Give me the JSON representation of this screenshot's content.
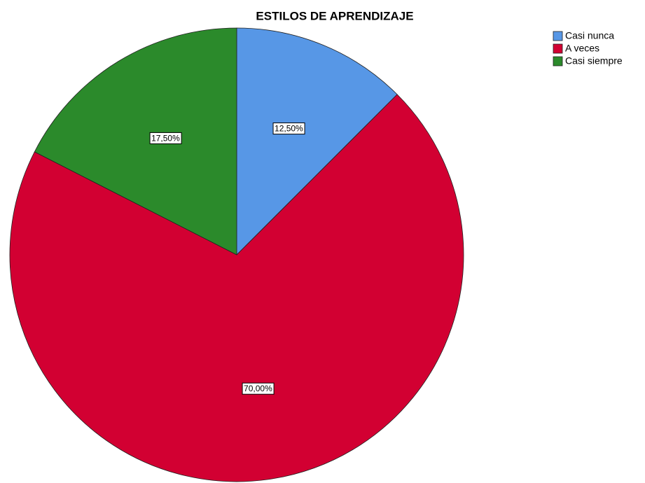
{
  "chart_data": {
    "type": "pie",
    "title": "ESTILOS DE APRENDIZAJE",
    "categories": [
      "Casi nunca",
      "A veces",
      "Casi siempre"
    ],
    "values": [
      12.5,
      70,
      17.5
    ],
    "value_labels": [
      "12,50%",
      "70,00%",
      "17,50%"
    ],
    "colors": [
      "#5797e6",
      "#d20032",
      "#2b8a2b"
    ],
    "legend": "top-right"
  }
}
